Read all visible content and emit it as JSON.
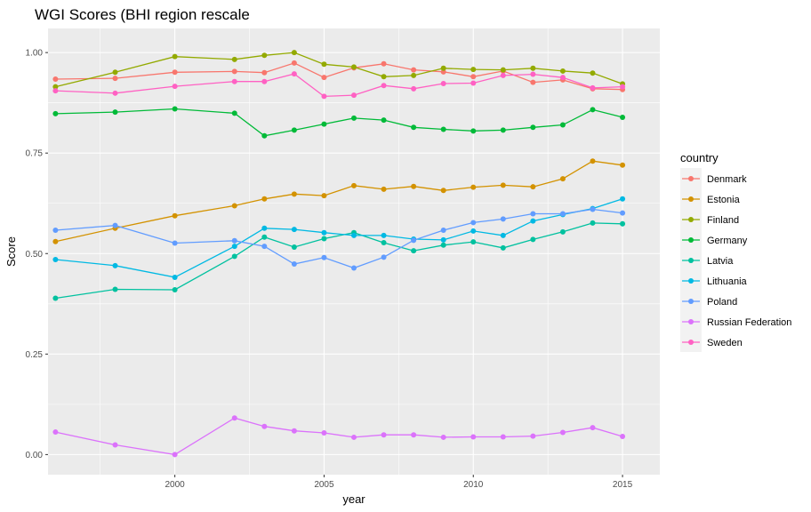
{
  "chart_data": {
    "type": "line",
    "title": "WGI Scores (BHI region rescale",
    "xlabel": "year",
    "ylabel": "Score",
    "xlim": [
      1995.75,
      2016.25
    ],
    "ylim": [
      -0.05,
      1.06
    ],
    "x_ticks": [
      2000,
      2005,
      2010,
      2015
    ],
    "y_ticks": [
      0.0,
      0.25,
      0.5,
      0.75,
      1.0
    ],
    "x_tick_labels": [
      "2000",
      "2005",
      "2010",
      "2015"
    ],
    "y_tick_labels": [
      "0.00",
      "0.25",
      "0.50",
      "0.75",
      "1.00"
    ],
    "grid": true,
    "legend": {
      "title": "country",
      "placement": "right"
    },
    "x": [
      1996,
      1998,
      2000,
      2002,
      2003,
      2004,
      2005,
      2006,
      2007,
      2008,
      2009,
      2010,
      2011,
      2012,
      2013,
      2014,
      2015
    ],
    "series": [
      {
        "name": "Denmark",
        "color": "#F8766D",
        "values": [
          0.934,
          0.936,
          0.951,
          0.953,
          0.95,
          0.974,
          0.938,
          0.962,
          0.972,
          0.957,
          0.952,
          0.94,
          0.954,
          0.926,
          0.932,
          0.91,
          0.908
        ]
      },
      {
        "name": "Estonia",
        "color": "#D39200",
        "values": [
          0.53,
          0.563,
          0.594,
          0.619,
          0.636,
          0.648,
          0.644,
          0.669,
          0.66,
          0.667,
          0.657,
          0.665,
          0.67,
          0.666,
          0.686,
          0.73,
          0.72
        ]
      },
      {
        "name": "Finland",
        "color": "#93AA00",
        "values": [
          0.915,
          0.951,
          0.99,
          0.983,
          0.993,
          1.0,
          0.971,
          0.964,
          0.94,
          0.943,
          0.961,
          0.958,
          0.957,
          0.961,
          0.954,
          0.949,
          0.922
        ]
      },
      {
        "name": "Germany",
        "color": "#00BA38",
        "values": [
          0.848,
          0.852,
          0.86,
          0.849,
          0.793,
          0.807,
          0.822,
          0.837,
          0.832,
          0.814,
          0.809,
          0.805,
          0.807,
          0.814,
          0.82,
          0.858,
          0.839
        ]
      },
      {
        "name": "Latvia",
        "color": "#00C19F",
        "values": [
          0.389,
          0.411,
          0.41,
          0.493,
          0.541,
          0.516,
          0.537,
          0.552,
          0.527,
          0.507,
          0.521,
          0.529,
          0.514,
          0.535,
          0.554,
          0.576,
          0.574
        ]
      },
      {
        "name": "Lithuania",
        "color": "#00B9E3",
        "values": [
          0.485,
          0.47,
          0.441,
          0.518,
          0.563,
          0.56,
          0.552,
          0.545,
          0.545,
          0.536,
          0.534,
          0.556,
          0.545,
          0.581,
          0.597,
          0.612,
          0.636
        ]
      },
      {
        "name": "Poland",
        "color": "#619CFF",
        "values": [
          0.558,
          0.57,
          0.526,
          0.532,
          0.518,
          0.474,
          0.49,
          0.464,
          0.491,
          0.533,
          0.558,
          0.577,
          0.586,
          0.599,
          0.599,
          0.61,
          0.601
        ]
      },
      {
        "name": "Russian Federation",
        "color": "#DB72FB",
        "values": [
          0.056,
          0.024,
          0.0,
          0.091,
          0.07,
          0.059,
          0.054,
          0.043,
          0.049,
          0.049,
          0.043,
          0.044,
          0.044,
          0.046,
          0.055,
          0.067,
          0.045
        ]
      },
      {
        "name": "Sweden",
        "color": "#FF61C3",
        "values": [
          0.905,
          0.899,
          0.916,
          0.928,
          0.928,
          0.947,
          0.891,
          0.894,
          0.918,
          0.91,
          0.923,
          0.924,
          0.943,
          0.946,
          0.938,
          0.912,
          0.915
        ]
      }
    ]
  }
}
